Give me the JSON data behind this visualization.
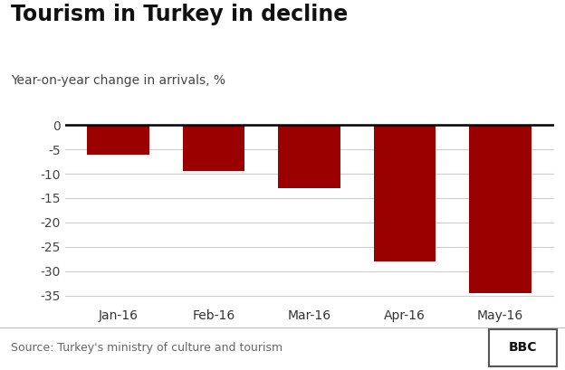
{
  "title": "Tourism in Turkey in decline",
  "subtitle": "Year-on-year change in arrivals, %",
  "categories": [
    "Jan-16",
    "Feb-16",
    "Mar-16",
    "Apr-16",
    "May-16"
  ],
  "values": [
    -6.0,
    -9.5,
    -13.0,
    -28.0,
    -34.5
  ],
  "bar_color": "#9b0000",
  "background_color": "#ffffff",
  "ylim": [
    -37,
    2.5
  ],
  "yticks": [
    0,
    -5,
    -10,
    -15,
    -20,
    -25,
    -30,
    -35
  ],
  "grid_color": "#cccccc",
  "source_text": "Source: Turkey's ministry of culture and tourism",
  "bbc_text": "BBC",
  "title_fontsize": 17,
  "subtitle_fontsize": 10,
  "tick_fontsize": 10,
  "source_fontsize": 9,
  "bar_width": 0.65
}
